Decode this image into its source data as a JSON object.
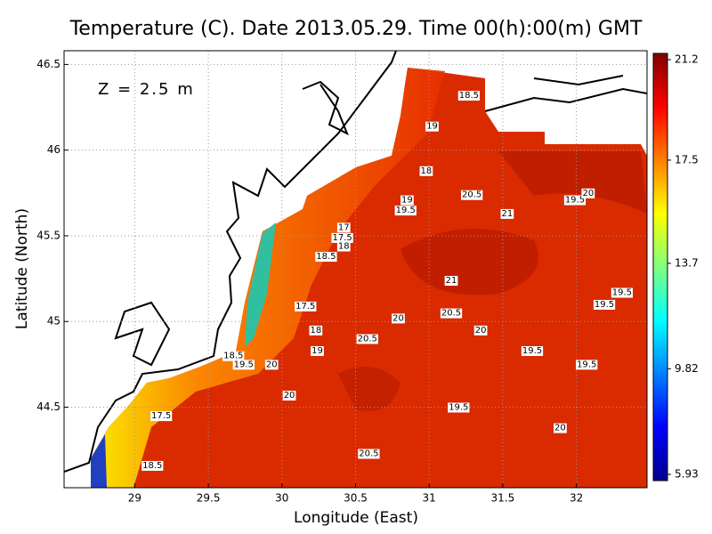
{
  "chart_data": {
    "type": "contour-map",
    "title": "Temperature (C). Date 2013.05.29. Time 00(h):00(m) GMT",
    "x_label": "Longitude (East)",
    "y_label": "Latitude (North)",
    "annotation": "Z = 2.5 m",
    "xlim": [
      28.52,
      32.48
    ],
    "ylim": [
      44.03,
      46.58
    ],
    "xticks": [
      29,
      29.5,
      30,
      30.5,
      31,
      31.5,
      32
    ],
    "yticks": [
      44.5,
      45,
      45.5,
      46,
      46.5
    ],
    "grid": true,
    "clim": [
      5.93,
      21.2
    ],
    "colorbar_ticks": [
      5.93,
      9.82,
      13.7,
      17.5,
      21.2
    ],
    "colormap": [
      "#00008f",
      "#0000ff",
      "#0080ff",
      "#00ffff",
      "#80ff80",
      "#ffff00",
      "#ff8000",
      "#ff0000",
      "#800000"
    ],
    "contour_labels": [
      {
        "value": 18.5,
        "lon": 31.27,
        "lat": 46.32
      },
      {
        "value": 19,
        "lon": 31.02,
        "lat": 46.14
      },
      {
        "value": 18,
        "lon": 30.98,
        "lat": 45.88
      },
      {
        "value": 20.5,
        "lon": 31.29,
        "lat": 45.74
      },
      {
        "value": 21,
        "lon": 31.53,
        "lat": 45.63
      },
      {
        "value": 19,
        "lon": 30.85,
        "lat": 45.71
      },
      {
        "value": 19.5,
        "lon": 30.84,
        "lat": 45.65
      },
      {
        "value": 17,
        "lon": 30.42,
        "lat": 45.55
      },
      {
        "value": 17.5,
        "lon": 30.41,
        "lat": 45.49
      },
      {
        "value": 18,
        "lon": 30.42,
        "lat": 45.44
      },
      {
        "value": 18.5,
        "lon": 30.3,
        "lat": 45.38
      },
      {
        "value": 19.5,
        "lon": 31.99,
        "lat": 45.71
      },
      {
        "value": 20,
        "lon": 32.08,
        "lat": 45.75
      },
      {
        "value": 21,
        "lon": 31.15,
        "lat": 45.24
      },
      {
        "value": 17.5,
        "lon": 30.16,
        "lat": 45.09
      },
      {
        "value": 20,
        "lon": 30.79,
        "lat": 45.02
      },
      {
        "value": 20.5,
        "lon": 31.15,
        "lat": 45.05
      },
      {
        "value": 19.5,
        "lon": 32.31,
        "lat": 45.17
      },
      {
        "value": 19.5,
        "lon": 32.19,
        "lat": 45.1
      },
      {
        "value": 18,
        "lon": 30.23,
        "lat": 44.95
      },
      {
        "value": 20.5,
        "lon": 30.58,
        "lat": 44.9
      },
      {
        "value": 20,
        "lon": 31.35,
        "lat": 44.95
      },
      {
        "value": 19,
        "lon": 30.24,
        "lat": 44.83
      },
      {
        "value": 19.5,
        "lon": 31.7,
        "lat": 44.83
      },
      {
        "value": 19.5,
        "lon": 32.07,
        "lat": 44.75
      },
      {
        "value": 18.5,
        "lon": 29.67,
        "lat": 44.8
      },
      {
        "value": 19.5,
        "lon": 29.74,
        "lat": 44.75
      },
      {
        "value": 20,
        "lon": 29.93,
        "lat": 44.75
      },
      {
        "value": 20,
        "lon": 30.05,
        "lat": 44.57
      },
      {
        "value": 19.5,
        "lon": 31.2,
        "lat": 44.5
      },
      {
        "value": 17.5,
        "lon": 29.18,
        "lat": 44.45
      },
      {
        "value": 20,
        "lon": 31.89,
        "lat": 44.38
      },
      {
        "value": 20.5,
        "lon": 30.59,
        "lat": 44.23
      },
      {
        "value": 18.5,
        "lon": 29.12,
        "lat": 44.16
      }
    ]
  }
}
